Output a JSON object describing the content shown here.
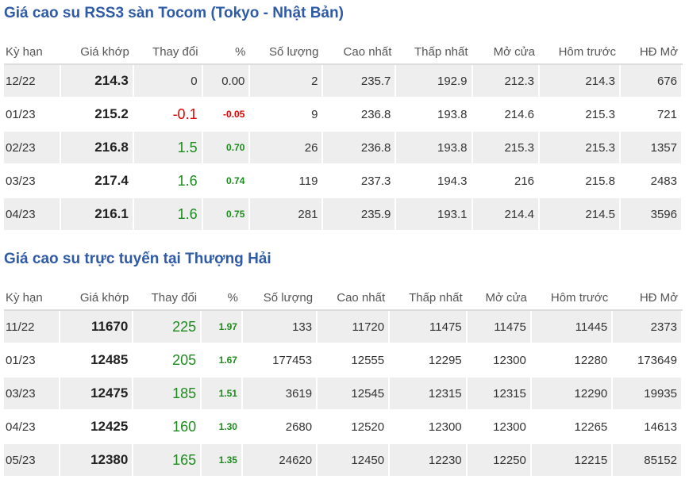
{
  "colors": {
    "title": "#2f5aa6",
    "up": "#1c8c1c",
    "down": "#e00000"
  },
  "tocom": {
    "title": "Giá cao su RSS3 sàn Tocom (Tokyo - Nhật Bản)",
    "headers": [
      "Kỳ hạn",
      "Giá khớp",
      "Thay đổi",
      "%",
      "Số lượng",
      "Cao nhất",
      "Thấp nhất",
      "Mở cửa",
      "Hôm trước",
      "HĐ Mở"
    ],
    "rows": [
      {
        "trend": "flat",
        "cells": [
          "12/22",
          "214.3",
          "0",
          "0.00",
          "2",
          "235.7",
          "192.9",
          "212.3",
          "214.3",
          "676"
        ]
      },
      {
        "trend": "down",
        "cells": [
          "01/23",
          "215.2",
          "-0.1",
          "-0.05",
          "9",
          "236.8",
          "193.8",
          "214.6",
          "215.3",
          "721"
        ]
      },
      {
        "trend": "up",
        "cells": [
          "02/23",
          "216.8",
          "1.5",
          "0.70",
          "26",
          "236.8",
          "193.8",
          "215.3",
          "215.3",
          "1357"
        ]
      },
      {
        "trend": "up",
        "cells": [
          "03/23",
          "217.4",
          "1.6",
          "0.74",
          "119",
          "237.3",
          "194.3",
          "216",
          "215.8",
          "2483"
        ]
      },
      {
        "trend": "up",
        "cells": [
          "04/23",
          "216.1",
          "1.6",
          "0.75",
          "281",
          "235.9",
          "193.1",
          "214.4",
          "214.5",
          "3596"
        ]
      }
    ]
  },
  "shanghai": {
    "title": "Giá cao su trực tuyến tại Thượng Hải",
    "headers": [
      "Kỳ hạn",
      "Giá khớp",
      "Thay đổi",
      "%",
      "Số lượng",
      "Cao nhất",
      "Thấp nhất",
      "Mở cửa",
      "Hôm trước",
      "HĐ Mở"
    ],
    "rows": [
      {
        "trend": "up",
        "cells": [
          "11/22",
          "11670",
          "225",
          "1.97",
          "133",
          "11720",
          "11475",
          "11475",
          "11445",
          "2373"
        ]
      },
      {
        "trend": "up",
        "cells": [
          "01/23",
          "12485",
          "205",
          "1.67",
          "177453",
          "12555",
          "12295",
          "12300",
          "12280",
          "173649"
        ]
      },
      {
        "trend": "up",
        "cells": [
          "03/23",
          "12475",
          "185",
          "1.51",
          "3619",
          "12545",
          "12315",
          "12315",
          "12290",
          "19935"
        ]
      },
      {
        "trend": "up",
        "cells": [
          "04/23",
          "12425",
          "160",
          "1.30",
          "2680",
          "12520",
          "12300",
          "12300",
          "12265",
          "14613"
        ]
      },
      {
        "trend": "up",
        "cells": [
          "05/23",
          "12380",
          "165",
          "1.35",
          "24620",
          "12450",
          "12230",
          "12250",
          "12215",
          "85152"
        ]
      }
    ]
  }
}
